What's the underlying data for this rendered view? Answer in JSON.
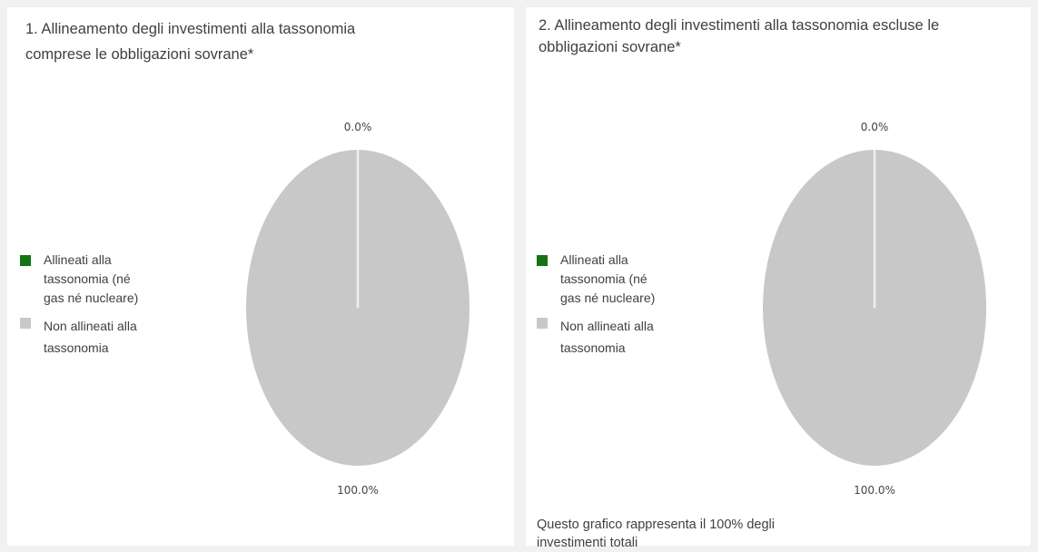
{
  "colors": {
    "aligned": "#147314",
    "not_aligned": "#c8c8c8",
    "separator": "#f0f0f0"
  },
  "chart_data": [
    {
      "type": "pie",
      "title": "1. Allineamento degli investimenti alla tassonomia compresele obbligazioni sovrane*",
      "title_lines": [
        "1. Allineamento degli investimenti alla tassonomia",
        "comprese le obbligazioni sovrane*"
      ],
      "legend": [
        {
          "lines": [
            "Allineati alla",
            "tassonomia (né",
            "gas né nucleare)"
          ],
          "color": "#147314"
        },
        {
          "lines": [
            "Non allineati alla",
            "tassonomia"
          ],
          "color": "#c8c8c8"
        }
      ],
      "slices": [
        {
          "name": "Allineati alla tassonomia (né gas né nucleare)",
          "value": 0.0,
          "label": "0.0%",
          "color": "#147314"
        },
        {
          "name": "Non allineati alla tassonomia",
          "value": 100.0,
          "label": "100.0%",
          "color": "#c8c8c8"
        }
      ]
    },
    {
      "type": "pie",
      "title": "2. Allineamento degli investimenti alla tassonomia escluse le obbligazioni sovrane*",
      "title_lines": [
        "2. Allineamento degli investimenti alla tassonomia escluse le",
        "obbligazioni sovrane*"
      ],
      "legend": [
        {
          "lines": [
            "Allineati alla",
            "tassonomia (né",
            "gas né nucleare)"
          ],
          "color": "#147314"
        },
        {
          "lines": [
            "Non allineati alla",
            "tassonomia"
          ],
          "color": "#c8c8c8"
        }
      ],
      "slices": [
        {
          "name": "Allineati alla tassonomia (né gas né nucleare)",
          "value": 0.0,
          "label": "0.0%",
          "color": "#147314"
        },
        {
          "name": "Non allineati alla tassonomia",
          "value": 100.0,
          "label": "100.0%",
          "color": "#c8c8c8"
        }
      ],
      "footnote_lines": [
        "Questo grafico rappresenta il 100% degli",
        "investimenti totali"
      ]
    }
  ]
}
